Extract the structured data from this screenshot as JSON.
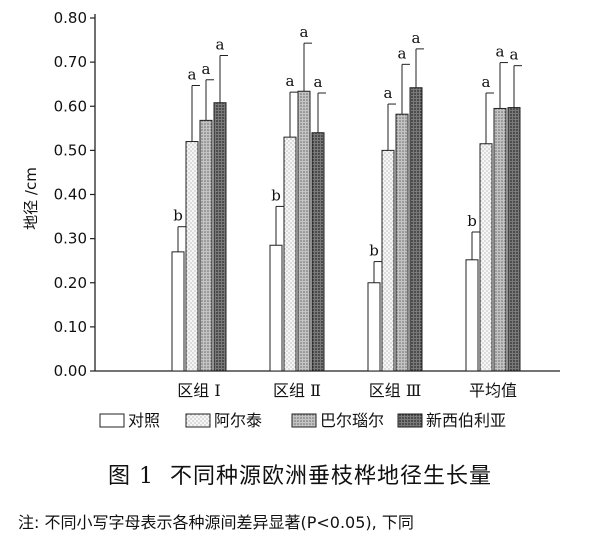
{
  "chart_data": {
    "type": "bar",
    "ylabel": "地径 /cm",
    "ylim": [
      0,
      0.8
    ],
    "yticks": [
      "0.00",
      "0.10",
      "0.20",
      "0.30",
      "0.40",
      "0.50",
      "0.60",
      "0.70",
      "0.80"
    ],
    "categories": [
      "区组 Ⅰ",
      "区组 Ⅱ",
      "区组 Ⅲ",
      "平均值"
    ],
    "grid": false,
    "legend_position": "bottom",
    "series": [
      {
        "name": "对照",
        "pattern": "white",
        "values": [
          0.27,
          0.285,
          0.2,
          0.252
        ],
        "errors": [
          0.057,
          0.088,
          0.048,
          0.063
        ],
        "labels": [
          "b",
          "b",
          "b",
          "b"
        ]
      },
      {
        "name": "阿尔泰",
        "pattern": "light-dots",
        "values": [
          0.52,
          0.53,
          0.5,
          0.515
        ],
        "errors": [
          0.127,
          0.102,
          0.105,
          0.115
        ],
        "labels": [
          "a",
          "a",
          "a",
          "a"
        ]
      },
      {
        "name": "巴尔瑙尔",
        "pattern": "medium-dots",
        "values": [
          0.568,
          0.634,
          0.582,
          0.595
        ],
        "errors": [
          0.092,
          0.109,
          0.113,
          0.104
        ],
        "labels": [
          "a",
          "a",
          "a",
          "a"
        ]
      },
      {
        "name": "新西伯利亚",
        "pattern": "dark-dots",
        "values": [
          0.608,
          0.54,
          0.642,
          0.597
        ],
        "errors": [
          0.107,
          0.09,
          0.088,
          0.095
        ],
        "labels": [
          "a",
          "a",
          "a",
          "a"
        ]
      }
    ]
  },
  "figure": {
    "number": "图 1",
    "title": "不同种源欧洲垂枝桦地径生长量",
    "note": "注: 不同小写字母表示各种源间差异显著(P<0.05), 下同"
  },
  "colors": {
    "axis": "#222222",
    "bar_outline": "#222222",
    "light_fill": "#e6e6e6",
    "medium_fill": "#a8a8a8",
    "dark_fill": "#5a5a5a"
  }
}
